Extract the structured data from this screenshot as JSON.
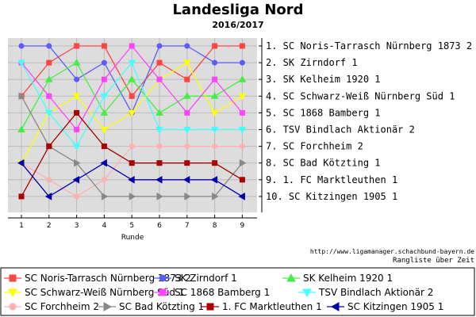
{
  "chart_data": {
    "type": "line",
    "title": "Landesliga Nord",
    "subtitle": "2016/2017",
    "xlabel": "Runde",
    "x": [
      1,
      2,
      3,
      4,
      5,
      6,
      7,
      8,
      9
    ],
    "ylim": [
      1,
      10
    ],
    "y_inverted": true,
    "grid": true,
    "legend_position": "bottom",
    "series": [
      {
        "name": "SC Noris-Tarrasch Nürnberg 1873 2",
        "values": [
          4,
          2,
          1,
          1,
          4,
          2,
          3,
          1,
          1
        ],
        "color": "#ff4444",
        "marker": "square"
      },
      {
        "name": "SK Zirndorf 1",
        "values": [
          1,
          1,
          3,
          2,
          5,
          1,
          1,
          2,
          2
        ],
        "color": "#5b5bff",
        "marker": "circle"
      },
      {
        "name": "SK Kelheim 1920 1",
        "values": [
          6,
          3,
          2,
          5,
          3,
          5,
          4,
          4,
          3
        ],
        "color": "#44ee44",
        "marker": "triangle-up"
      },
      {
        "name": "SC Schwarz-Weiß Nürnberg Süd 1",
        "values": [
          8,
          5,
          4,
          6,
          5,
          3,
          2,
          5,
          4
        ],
        "color": "#ffff00",
        "marker": "triangle-down"
      },
      {
        "name": "SC 1868 Bamberg 1",
        "values": [
          2,
          4,
          6,
          3,
          1,
          3,
          5,
          3,
          5
        ],
        "color": "#ff44ff",
        "marker": "square"
      },
      {
        "name": "TSV Bindlach Aktionär 2",
        "values": [
          2,
          5,
          7,
          4,
          2,
          6,
          6,
          6,
          6
        ],
        "color": "#44ffff",
        "marker": "triangle-down"
      },
      {
        "name": "SC Forchheim 2",
        "values": [
          8,
          9,
          10,
          9,
          7,
          7,
          7,
          7,
          7
        ],
        "color": "#ffb0b0",
        "marker": "circle"
      },
      {
        "name": "SC Bad Kötzting 1",
        "values": [
          4,
          7,
          8,
          10,
          10,
          10,
          10,
          10,
          8
        ],
        "color": "#888888",
        "marker": "triangle-right"
      },
      {
        "name": "1. FC Marktleuthen 1",
        "values": [
          10,
          7,
          5,
          7,
          8,
          8,
          8,
          8,
          9
        ],
        "color": "#aa0000",
        "marker": "square"
      },
      {
        "name": "SC Kitzingen 1905 1",
        "values": [
          8,
          10,
          9,
          8,
          9,
          9,
          9,
          9,
          10
        ],
        "color": "#0000aa",
        "marker": "triangle-left"
      }
    ],
    "final_ranking": [
      "1. SC Noris-Tarrasch Nürnberg 1873 2",
      "2. SK Zirndorf 1",
      "3. SK Kelheim 1920 1",
      "4. SC Schwarz-Weiß Nürnberg Süd 1",
      "5. SC 1868 Bamberg 1",
      "6. TSV Bindlach Aktionär 2",
      "7. SC Forchheim 2",
      "8. SC Bad Kötzting 1",
      "9. 1. FC Marktleuthen 1",
      "10. SC Kitzingen 1905 1"
    ],
    "source_url": "http://www.ligamanager.schachbund-bayern.de",
    "source_note": "Rangliste über Zeit"
  }
}
